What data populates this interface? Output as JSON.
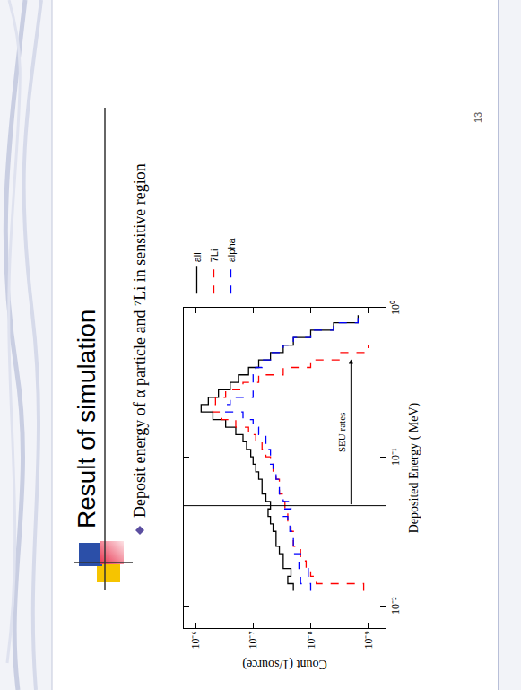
{
  "slide": {
    "title": "Result of simulation",
    "bullet": "Deposit energy of α particle and ⁷Li in sensitive region",
    "page_number": "13"
  },
  "chart_data": {
    "type": "histogram",
    "x_label": "Deposited Energy ( MeV)",
    "y_label": "Count (1/source)",
    "log": true,
    "grid": false,
    "legend": "right",
    "xlim": [
      0.0071,
      1.0
    ],
    "ylim": [
      5e-10,
      1.6e-06
    ],
    "xticks": [
      {
        "value": 0.01,
        "label": "10⁻²"
      },
      {
        "value": 0.1,
        "label": "10⁻¹"
      },
      {
        "value": 1,
        "label": "10⁰"
      }
    ],
    "yticks": [
      {
        "value": 1e-09,
        "label": "10⁻⁹"
      },
      {
        "value": 1e-08,
        "label": "10⁻⁸"
      },
      {
        "value": 1e-07,
        "label": "10⁻⁷"
      },
      {
        "value": 1e-06,
        "label": "10⁻⁶"
      }
    ],
    "bins": [
      0.0126,
      0.0141,
      0.0158,
      0.0178,
      0.02,
      0.0224,
      0.0251,
      0.0282,
      0.0316,
      0.0355,
      0.0398,
      0.0447,
      0.0501,
      0.0562,
      0.0631,
      0.0708,
      0.0794,
      0.0891,
      0.1,
      0.112,
      0.126,
      0.141,
      0.158,
      0.178,
      0.2,
      0.224,
      0.251,
      0.282,
      0.316,
      0.355,
      0.398,
      0.447,
      0.501,
      0.562,
      0.631,
      0.708,
      0.794,
      0.891
    ],
    "series": [
      {
        "name": "all",
        "color": "#000000",
        "line_style": "solid",
        "values": [
          2e-08,
          2.5e-08,
          2.2e-08,
          3e-08,
          3e-08,
          3.5e-08,
          4e-08,
          4e-08,
          4.5e-08,
          5e-08,
          5.5e-08,
          5e-08,
          6e-08,
          7e-08,
          7e-08,
          8e-08,
          9e-08,
          1e-07,
          1.1e-07,
          1.3e-07,
          1.5e-07,
          2e-07,
          3e-07,
          5e-07,
          8e-07,
          6e-07,
          4e-07,
          2.5e-07,
          1.8e-07,
          1.2e-07,
          8e-08,
          5e-08,
          3e-08,
          2e-08,
          1e-08,
          4e-09,
          1.5e-09
        ]
      },
      {
        "name": "7Li",
        "color": "#ff0000",
        "line_style": "dash",
        "values": [
          1.2e-09,
          8e-09,
          1e-08,
          1.2e-08,
          1.5e-08,
          1.5e-08,
          2e-08,
          2e-08,
          2.2e-08,
          2.5e-08,
          2.5e-08,
          2.8e-08,
          3e-08,
          3.5e-08,
          3.5e-08,
          4e-08,
          4.5e-08,
          5e-08,
          6e-08,
          7e-08,
          9e-08,
          1.2e-07,
          2e-07,
          3.5e-07,
          5e-07,
          4.5e-07,
          3e-07,
          1.5e-07,
          8e-08,
          3e-08,
          1e-08,
          3e-09,
          1e-09,
          null,
          null,
          null,
          null
        ]
      },
      {
        "name": "alpha",
        "color": "#0000ff",
        "line_style": "dash",
        "values": [
          1e-08,
          1.5e-08,
          1.1e-08,
          1.6e-08,
          1.5e-08,
          2e-08,
          2e-08,
          2e-08,
          2.3e-08,
          2.5e-08,
          3e-08,
          2.2e-08,
          3e-08,
          3.5e-08,
          3.5e-08,
          4e-08,
          4.5e-08,
          5e-08,
          5e-08,
          6e-08,
          6e-08,
          8e-08,
          1e-07,
          1.5e-07,
          3e-07,
          2.5e-07,
          1e-07,
          1e-07,
          1e-07,
          9e-08,
          7e-08,
          5e-08,
          3e-08,
          2e-08,
          1e-08,
          4e-09,
          1.5e-09
        ]
      }
    ],
    "annotations": [
      {
        "text": "SEU rates",
        "x": 0.047,
        "x_end": 0.45,
        "y": 2e-09
      }
    ]
  }
}
